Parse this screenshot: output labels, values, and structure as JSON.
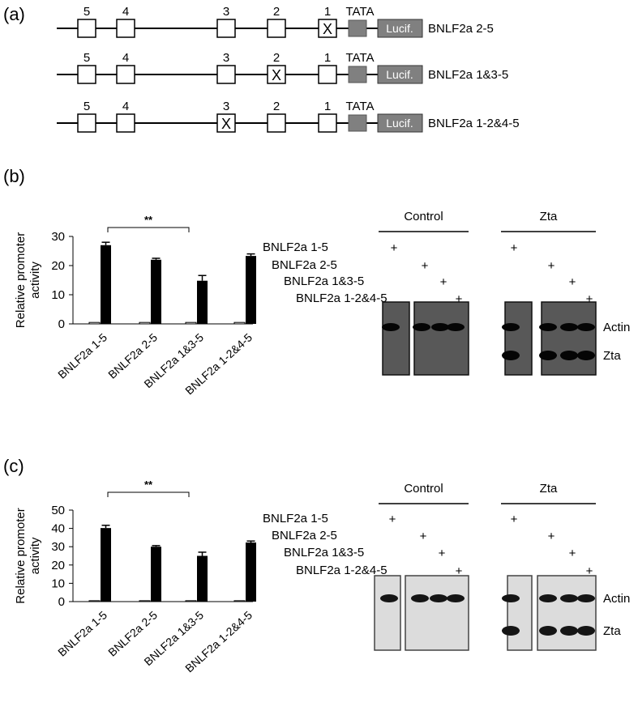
{
  "panel_a": {
    "letter": "(a)",
    "element_numbers": [
      "5",
      "4",
      "3",
      "2",
      "1"
    ],
    "tata_label": "TATA",
    "reporter_label": "Lucif.",
    "mutation_mark": "X",
    "constructs": [
      {
        "name": "BNLF2a 2-5",
        "mutated_element": "1"
      },
      {
        "name": "BNLF2a 1&3-5",
        "mutated_element": "2"
      },
      {
        "name": "BNLF2a 1-2&4-5",
        "mutated_element": "3"
      }
    ]
  },
  "panel_b": {
    "letter": "(b)",
    "significance": "**",
    "blot": {
      "groups": [
        "Control",
        "Zta"
      ],
      "lanes": [
        "BNLF2a 1-5",
        "BNLF2a 2-5",
        "BNLF2a 1&3-5",
        "BNLF2a 1-2&4-5"
      ],
      "plus": "+",
      "bands": [
        "Actin",
        "Zta"
      ],
      "style": "dark"
    }
  },
  "panel_c": {
    "letter": "(c)",
    "significance": "**",
    "blot": {
      "groups": [
        "Control",
        "Zta"
      ],
      "lanes": [
        "BNLF2a 1-5",
        "BNLF2a 2-5",
        "BNLF2a 1&3-5",
        "BNLF2a 1-2&4-5"
      ],
      "plus": "+",
      "bands": [
        "Actin",
        "Zta"
      ],
      "style": "light"
    }
  },
  "chart_data": [
    {
      "type": "bar",
      "title": "",
      "xlabel": "",
      "ylabel": "Relative promoter activity",
      "ylim": [
        0,
        30
      ],
      "yticks": [
        0,
        10,
        20,
        30
      ],
      "categories": [
        "BNLF2a 1-5",
        "BNLF2a 2-5",
        "BNLF2a 1&3-5",
        "BNLF2a 1-2&4-5"
      ],
      "series": [
        {
          "values": [
            0.5,
            0.5,
            0.5,
            0.5
          ],
          "color": "#ffffff"
        },
        {
          "values": [
            27,
            22,
            14.8,
            23.3
          ],
          "errors": [
            1.0,
            0.5,
            1.8,
            0.7
          ],
          "color": "#000000"
        }
      ],
      "grid": false,
      "legend": false
    },
    {
      "type": "bar",
      "title": "",
      "xlabel": "",
      "ylabel": "Relative promoter activity",
      "ylim": [
        0,
        50
      ],
      "yticks": [
        0,
        10,
        20,
        30,
        40,
        50
      ],
      "categories": [
        "BNLF2a 1-5",
        "BNLF2a 2-5",
        "BNLF2a 1&3-5",
        "BNLF2a 1-2&4-5"
      ],
      "series": [
        {
          "values": [
            0.5,
            0.5,
            0.5,
            0.5
          ],
          "color": "#ffffff"
        },
        {
          "values": [
            40.2,
            30,
            25,
            32.3
          ],
          "errors": [
            1.5,
            0.6,
            2.0,
            0.8
          ],
          "color": "#000000"
        }
      ],
      "grid": false,
      "legend": false
    }
  ]
}
